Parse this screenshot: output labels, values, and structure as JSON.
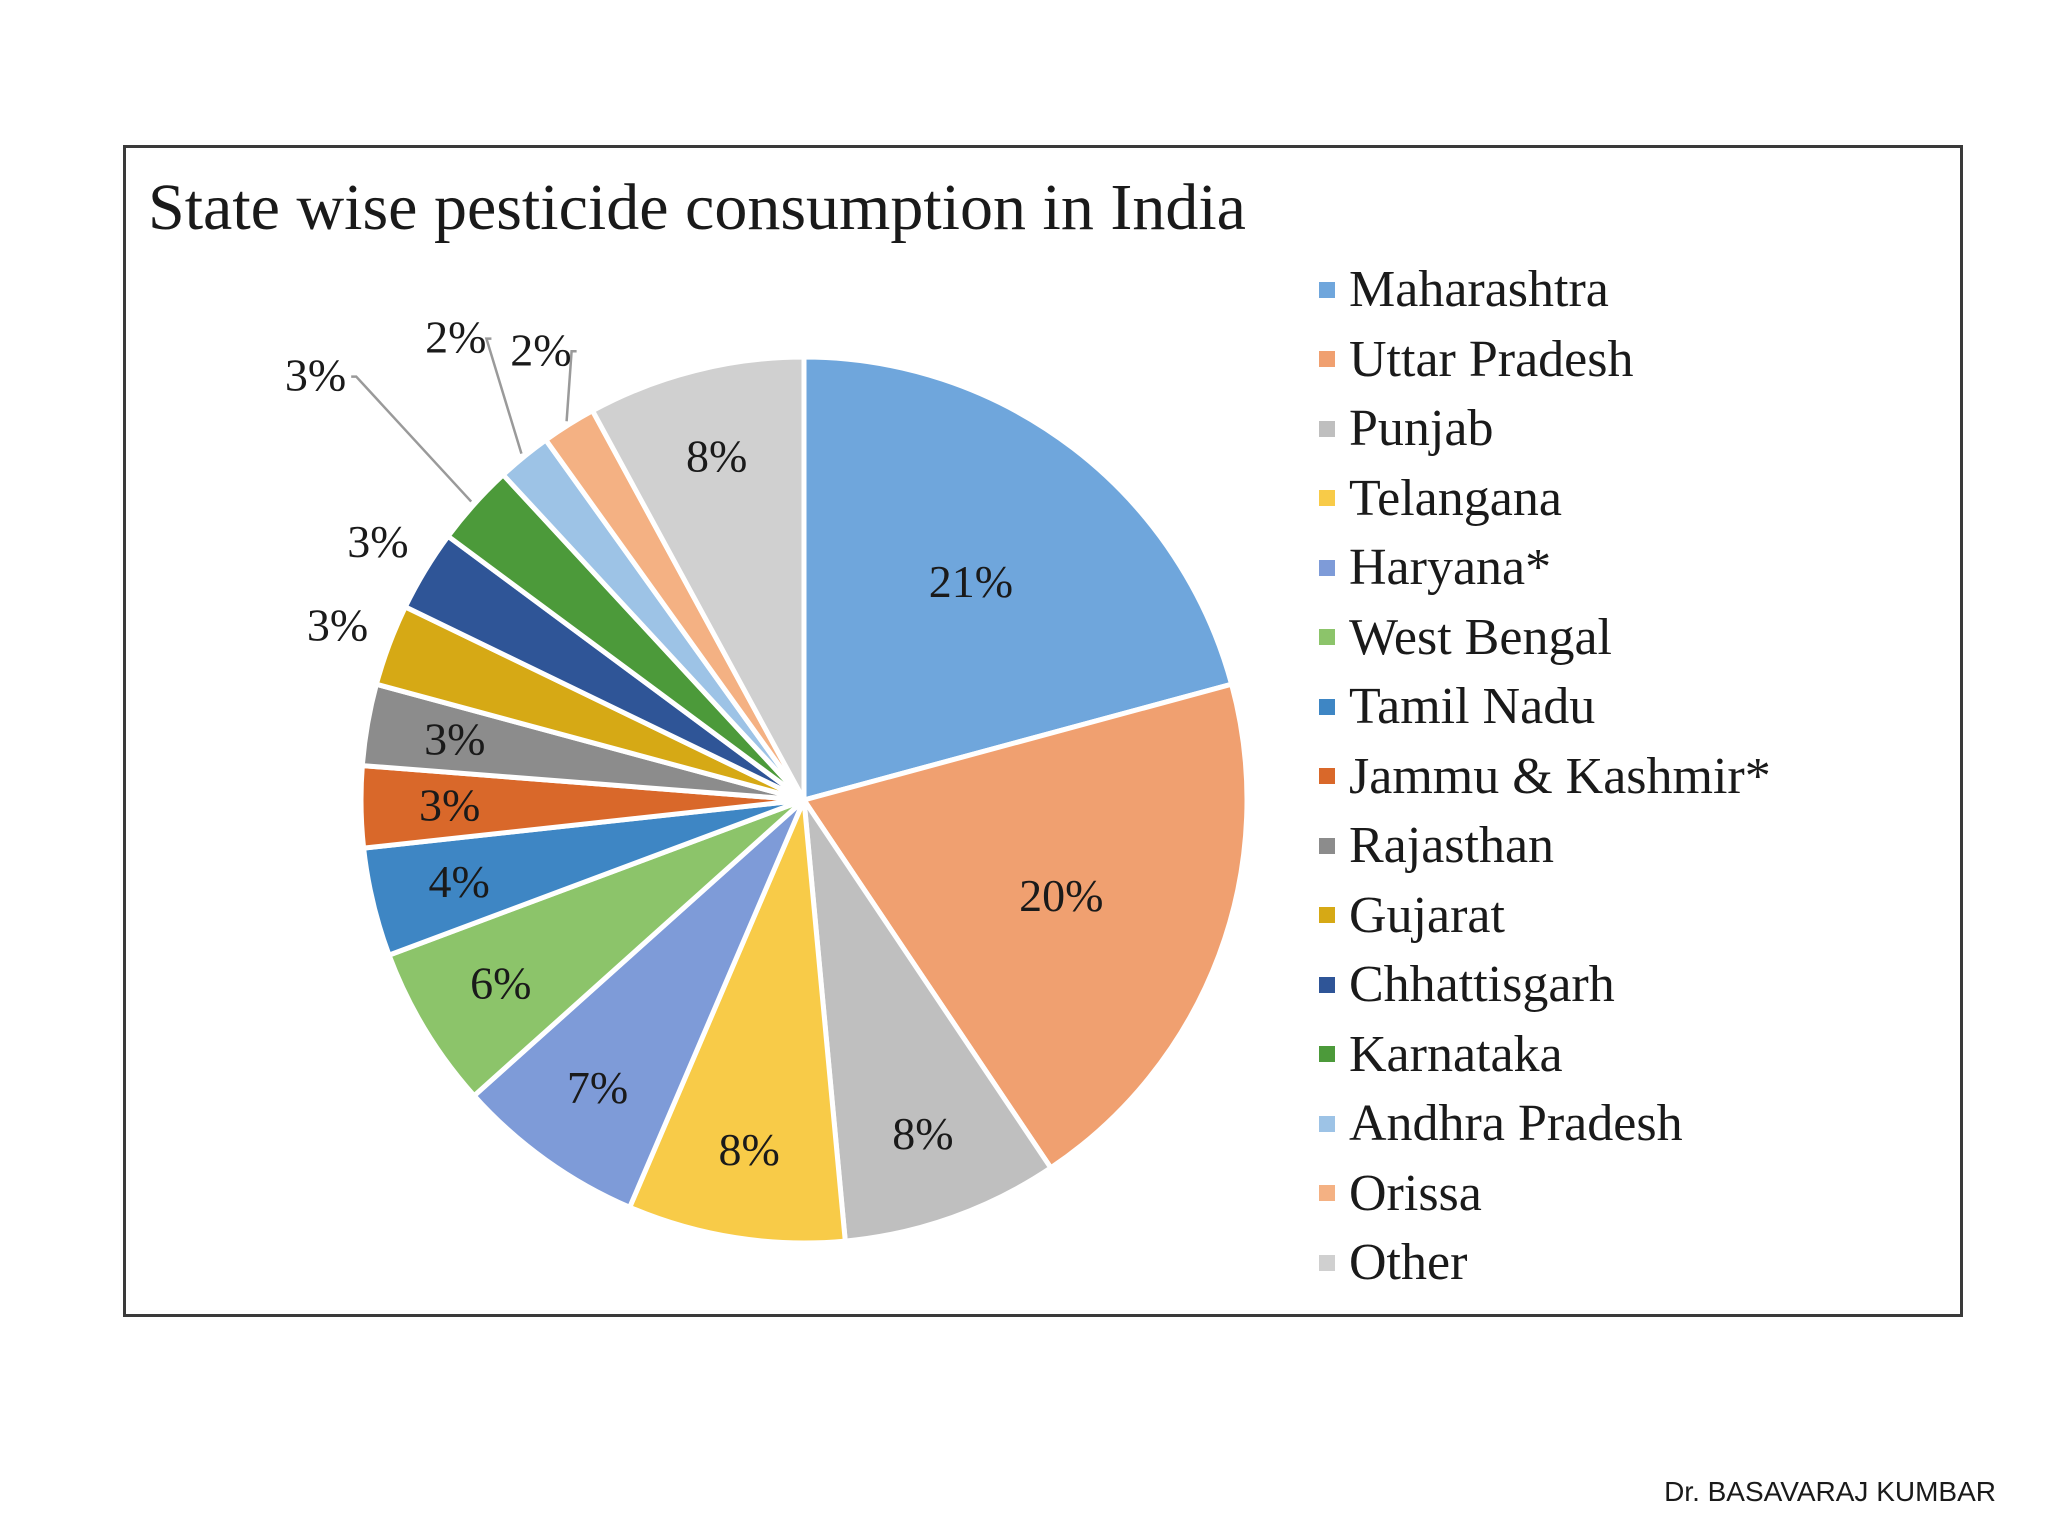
{
  "chart_data": {
    "type": "pie",
    "title": "State wise pesticide consumption in India",
    "start_angle_deg": 0,
    "direction": "clockwise",
    "slices": [
      {
        "name": "Maharashtra",
        "value": 21,
        "label": "21%",
        "color": "#6FA6DC"
      },
      {
        "name": "Uttar Pradesh",
        "value": 20,
        "label": "20%",
        "color": "#F0A070"
      },
      {
        "name": "Punjab",
        "value": 8,
        "label": "8%",
        "color": "#BFBFBF"
      },
      {
        "name": "Telangana",
        "value": 8,
        "label": "8%",
        "color": "#F8CB48"
      },
      {
        "name": "Haryana*",
        "value": 7,
        "label": "7%",
        "color": "#7E9BD8"
      },
      {
        "name": "West Bengal",
        "value": 6,
        "label": "6%",
        "color": "#8CC46A"
      },
      {
        "name": "Tamil Nadu",
        "value": 4,
        "label": "4%",
        "color": "#3E86C4"
      },
      {
        "name": "Jammu & Kashmir*",
        "value": 3,
        "label": "3%",
        "color": "#D9682A"
      },
      {
        "name": "Rajasthan",
        "value": 3,
        "label": "3%",
        "color": "#8C8C8C"
      },
      {
        "name": "Gujarat",
        "value": 3,
        "label": "3%",
        "color": "#D6A915"
      },
      {
        "name": "Chhattisgarh",
        "value": 3,
        "label": "3%",
        "color": "#2F5597"
      },
      {
        "name": "Karnataka",
        "value": 3,
        "label": "3%",
        "color": "#4C9A3A"
      },
      {
        "name": "Andhra Pradesh",
        "value": 2,
        "label": "2%",
        "color": "#9DC3E6"
      },
      {
        "name": "Orissa",
        "value": 2,
        "label": "2%",
        "color": "#F4B183"
      },
      {
        "name": "Other",
        "value": 8,
        "label": "8%",
        "color": "#D0D0D0"
      }
    ],
    "legend_position": "right",
    "data_labels": "percent"
  },
  "footer": {
    "credit": "Dr. BASAVARAJ KUMBAR"
  }
}
